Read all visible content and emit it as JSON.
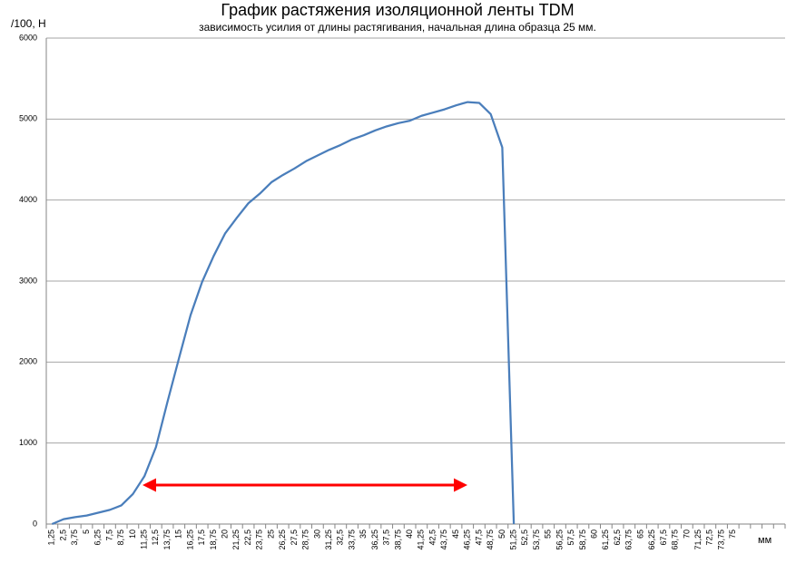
{
  "chart_data": {
    "type": "line",
    "title": "График растяжения изоляционной ленты TDM",
    "subtitle": "зависимость усилия от длины растягивания, начальная длина образца 25 мм.",
    "y_label": "/100, Н",
    "x_label": "мм",
    "categories": [
      "1,25",
      "2,5",
      "3,75",
      "5",
      "6,25",
      "7,5",
      "8,75",
      "10",
      "11,25",
      "12,5",
      "13,75",
      "15",
      "16,25",
      "17,5",
      "18,75",
      "20",
      "21,25",
      "22,5",
      "23,75",
      "25",
      "26,25",
      "27,5",
      "28,75",
      "30",
      "31,25",
      "32,5",
      "33,75",
      "35",
      "36,25",
      "37,5",
      "38,75",
      "40",
      "41,25",
      "42,5",
      "43,75",
      "45",
      "46,25",
      "47,5",
      "48,75",
      "50",
      "51,25",
      "52,5",
      "53,75",
      "55",
      "56,25",
      "57,5",
      "58,75",
      "60",
      "61,25",
      "62,5",
      "63,75",
      "65",
      "66,25",
      "67,5",
      "68,75",
      "70",
      "71,25",
      "72,5",
      "73,75",
      "75",
      null,
      null,
      null,
      null
    ],
    "values": [
      0,
      60,
      85,
      105,
      140,
      175,
      230,
      370,
      590,
      950,
      1510,
      2050,
      2580,
      2990,
      3310,
      3590,
      3780,
      3960,
      4080,
      4220,
      4310,
      4390,
      4480,
      4550,
      4620,
      4680,
      4750,
      4800,
      4860,
      4910,
      4950,
      4980,
      5040,
      5080,
      5120,
      5170,
      5210,
      5200,
      5060,
      4650,
      0,
      null,
      null,
      null,
      null,
      null,
      null,
      null,
      null,
      null,
      null,
      null,
      null,
      null,
      null,
      null,
      null,
      null,
      null,
      null,
      null,
      null,
      null,
      null
    ],
    "color": "#4a7ebb",
    "ylim": [
      0,
      6000
    ],
    "yticks": [
      0,
      1000,
      2000,
      3000,
      4000,
      5000,
      6000
    ],
    "grid": true
  }
}
